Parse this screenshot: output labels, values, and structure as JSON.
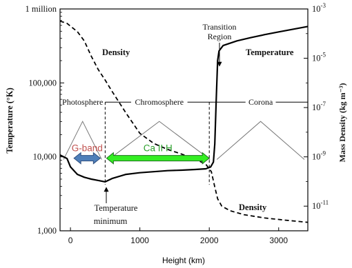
{
  "chart_data": {
    "type": "line",
    "xlabel": "Height (km)",
    "ylabel_left": "Temperature (°K)",
    "ylabel_right": "Mass Density (kg m⁻³)",
    "xlim": [
      -150,
      3420
    ],
    "x_ticks": [
      0,
      1000,
      2000,
      3000
    ],
    "x_tick_labels": [
      "0",
      "1000",
      "2000",
      "3000"
    ],
    "y_left_scale": "log",
    "y_left_lim": [
      1000,
      1000000
    ],
    "y_left_ticks": [
      1000,
      10000,
      100000,
      1000000
    ],
    "y_left_tick_labels": [
      "1,000",
      "10,000",
      "100,000",
      "1 million"
    ],
    "y_right_scale": "log",
    "y_right_lim": [
      1e-12,
      0.001
    ],
    "y_right_ticks": [
      1e-11,
      1e-09,
      1e-07,
      1e-05,
      0.001
    ],
    "y_right_tick_labels": [
      {
        "base": "10",
        "exp": "-11"
      },
      {
        "base": "10",
        "exp": "-9"
      },
      {
        "base": "10",
        "exp": "-7"
      },
      {
        "base": "10",
        "exp": "-5"
      },
      {
        "base": "10",
        "exp": "-3"
      }
    ],
    "grid": false,
    "series": [
      {
        "name": "Temperature",
        "axis": "left",
        "style": "solid",
        "color": "#000000",
        "points": [
          [
            -150,
            10600
          ],
          [
            -50,
            9500
          ],
          [
            0,
            7300
          ],
          [
            100,
            5800
          ],
          [
            200,
            5300
          ],
          [
            300,
            5000
          ],
          [
            400,
            4800
          ],
          [
            500,
            4600
          ],
          [
            600,
            5100
          ],
          [
            800,
            5800
          ],
          [
            1000,
            6100
          ],
          [
            1200,
            6300
          ],
          [
            1400,
            6500
          ],
          [
            1600,
            6600
          ],
          [
            1800,
            6750
          ],
          [
            1950,
            6900
          ],
          [
            2020,
            7300
          ],
          [
            2060,
            8500
          ],
          [
            2080,
            15000
          ],
          [
            2100,
            60000
          ],
          [
            2120,
            200000
          ],
          [
            2140,
            270000
          ],
          [
            2200,
            320000
          ],
          [
            2400,
            370000
          ],
          [
            2600,
            410000
          ],
          [
            2800,
            450000
          ],
          [
            3000,
            490000
          ],
          [
            3200,
            530000
          ],
          [
            3420,
            580000
          ]
        ]
      },
      {
        "name": "Density",
        "axis": "right",
        "style": "dashed",
        "color": "#000000",
        "points": [
          [
            -150,
            0.00032
          ],
          [
            -50,
            0.00026
          ],
          [
            0,
            0.0002
          ],
          [
            100,
            0.00012
          ],
          [
            200,
            5e-05
          ],
          [
            300,
            1.2e-05
          ],
          [
            400,
            3.5e-06
          ],
          [
            500,
            1.3e-06
          ],
          [
            600,
            4.5e-07
          ],
          [
            800,
            6e-08
          ],
          [
            1000,
            9e-09
          ],
          [
            1200,
            3.5e-09
          ],
          [
            1400,
            2e-09
          ],
          [
            1600,
            1.3e-09
          ],
          [
            1800,
            8e-10
          ],
          [
            1950,
            5e-10
          ],
          [
            2030,
            2.5e-10
          ],
          [
            2080,
            6e-11
          ],
          [
            2120,
            2e-11
          ],
          [
            2180,
            1e-11
          ],
          [
            2300,
            6.5e-12
          ],
          [
            2500,
            4.5e-12
          ],
          [
            2800,
            3.3e-12
          ],
          [
            3100,
            2.7e-12
          ],
          [
            3420,
            2.2e-12
          ]
        ]
      }
    ],
    "annotations": {
      "density_upper": "Density",
      "temperature": "Temperature",
      "density_lower": "Density",
      "transition_region": [
        "Transition",
        "Region"
      ],
      "temperature_minimum": [
        "Temperature",
        "minimum"
      ],
      "regions": [
        {
          "label": "Photosphere",
          "from": -150,
          "to": 500
        },
        {
          "label": "Chromosphere",
          "from": 500,
          "to": 2060
        },
        {
          "label": "Corona",
          "from": 2060,
          "to": 3420
        }
      ],
      "region_temperature": 55000,
      "region_boundaries": [
        500,
        2000
      ],
      "bands": [
        {
          "label": "G-band",
          "from": 50,
          "to": 430,
          "color": "#c0504d",
          "arrow_fill": "#4f7fb9",
          "arrow_stroke": "#2f4f7f"
        },
        {
          "label": "Ca II H",
          "from": 520,
          "to": 2000,
          "color": "#2ba02b",
          "arrow_fill": "#33ee22",
          "arrow_stroke": "#1e6e1e"
        }
      ]
    }
  }
}
